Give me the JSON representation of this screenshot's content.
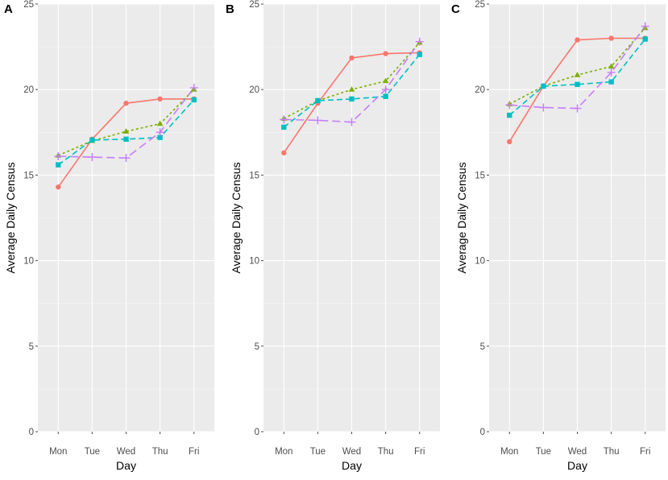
{
  "chart_data": [
    {
      "panel": "A",
      "type": "line",
      "xlabel": "Day",
      "ylabel": "Average Daily Census",
      "categories": [
        "Mon",
        "Tue",
        "Wed",
        "Thu",
        "Fri"
      ],
      "ylim": [
        0,
        25
      ],
      "yticks": [
        "0",
        "5",
        "10",
        "15",
        "20",
        "25"
      ],
      "grid": true,
      "series": [
        {
          "id": "s1",
          "color": "#F8766D",
          "marker": "circle",
          "dash": "solid",
          "values": [
            14.3,
            17.1,
            19.2,
            19.45,
            19.45
          ]
        },
        {
          "id": "s2",
          "color": "#7CAE00",
          "marker": "triangle",
          "dash": "dotted",
          "values": [
            16.15,
            17.0,
            17.55,
            18.0,
            20.0
          ]
        },
        {
          "id": "s3",
          "color": "#00BFC4",
          "marker": "square",
          "dash": "dashed",
          "values": [
            15.6,
            17.05,
            17.1,
            17.2,
            19.4
          ]
        },
        {
          "id": "s4",
          "color": "#C77CFF",
          "marker": "cross",
          "dash": "longdash",
          "values": [
            16.1,
            16.05,
            16.0,
            17.5,
            20.1
          ]
        }
      ]
    },
    {
      "panel": "B",
      "type": "line",
      "xlabel": "Day",
      "ylabel": "Average Daily Census",
      "categories": [
        "Mon",
        "Tue",
        "Wed",
        "Thu",
        "Fri"
      ],
      "ylim": [
        0,
        25
      ],
      "yticks": [
        "0",
        "5",
        "10",
        "15",
        "20",
        "25"
      ],
      "grid": true,
      "series": [
        {
          "id": "s1",
          "color": "#F8766D",
          "marker": "circle",
          "dash": "solid",
          "values": [
            16.3,
            19.2,
            21.85,
            22.1,
            22.15
          ]
        },
        {
          "id": "s2",
          "color": "#7CAE00",
          "marker": "triangle",
          "dash": "dotted",
          "values": [
            18.3,
            19.35,
            20.0,
            20.5,
            22.75
          ]
        },
        {
          "id": "s3",
          "color": "#00BFC4",
          "marker": "square",
          "dash": "dashed",
          "values": [
            17.8,
            19.35,
            19.45,
            19.6,
            22.05
          ]
        },
        {
          "id": "s4",
          "color": "#C77CFF",
          "marker": "cross",
          "dash": "longdash",
          "values": [
            18.25,
            18.2,
            18.1,
            20.0,
            22.8
          ]
        }
      ]
    },
    {
      "panel": "C",
      "type": "line",
      "xlabel": "Day",
      "ylabel": "Average Daily Census",
      "categories": [
        "Mon",
        "Tue",
        "Wed",
        "Thu",
        "Fri"
      ],
      "ylim": [
        0,
        25
      ],
      "yticks": [
        "0",
        "5",
        "10",
        "15",
        "20",
        "25"
      ],
      "grid": true,
      "series": [
        {
          "id": "s1",
          "color": "#F8766D",
          "marker": "circle",
          "dash": "solid",
          "values": [
            16.95,
            20.2,
            22.9,
            23.0,
            23.0
          ]
        },
        {
          "id": "s2",
          "color": "#7CAE00",
          "marker": "triangle",
          "dash": "dotted",
          "values": [
            19.15,
            20.2,
            20.85,
            21.35,
            23.6
          ]
        },
        {
          "id": "s3",
          "color": "#00BFC4",
          "marker": "square",
          "dash": "dashed",
          "values": [
            18.5,
            20.2,
            20.3,
            20.45,
            22.95
          ]
        },
        {
          "id": "s4",
          "color": "#C77CFF",
          "marker": "cross",
          "dash": "longdash",
          "values": [
            19.1,
            18.95,
            18.9,
            21.0,
            23.7
          ]
        }
      ]
    }
  ]
}
